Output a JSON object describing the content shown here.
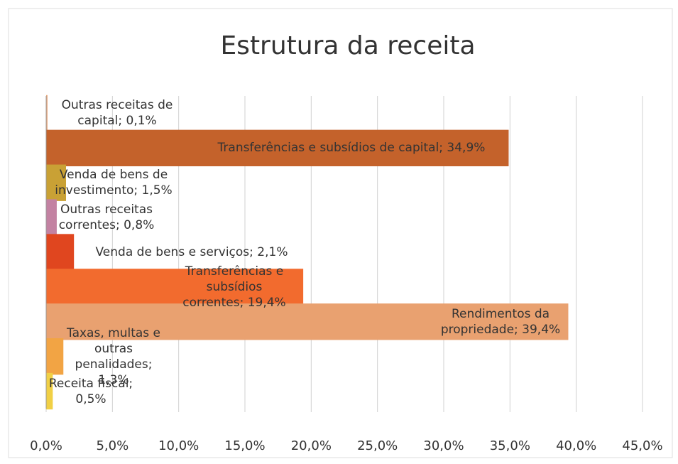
{
  "chart_data": {
    "type": "hbar",
    "title": "Estrutura da receita",
    "values": [
      0.1,
      34.9,
      1.5,
      0.8,
      2.1,
      19.4,
      39.4,
      1.3,
      0.5
    ],
    "value_labels": [
      "Outras receitas de capital; 0,1%",
      "Transferências e subsídios de capital; 34,9%",
      "Venda de bens de investimento; 1,5%",
      "Outras receitas correntes; 0,8%",
      "Venda de bens e serviços; 2,1%",
      "Transferências e subsídios correntes; 19,4%",
      "Rendimentos da propriedade; 39,4%",
      "Taxas, multas e outras penalidades; 1,3%",
      "Receita fiscal; 0,5%"
    ],
    "colors": [
      "#e9a77a",
      "#c4622b",
      "#c9a135",
      "#c382a2",
      "#e0461f",
      "#f26b2e",
      "#e9a170",
      "#f2a444",
      "#f1d045"
    ],
    "xlim": [
      0,
      45
    ],
    "xticks": [
      {
        "value": 0,
        "label": "0,0%"
      },
      {
        "value": 5,
        "label": "5,0%"
      },
      {
        "value": 10,
        "label": "10,0%"
      },
      {
        "value": 15,
        "label": "15,0%"
      },
      {
        "value": 20,
        "label": "20,0%"
      },
      {
        "value": 25,
        "label": "25,0%"
      },
      {
        "value": 30,
        "label": "30,0%"
      },
      {
        "value": 35,
        "label": "35,0%"
      },
      {
        "value": 40,
        "label": "40,0%"
      },
      {
        "value": 45,
        "label": "45,0%"
      }
    ],
    "grid": true
  }
}
